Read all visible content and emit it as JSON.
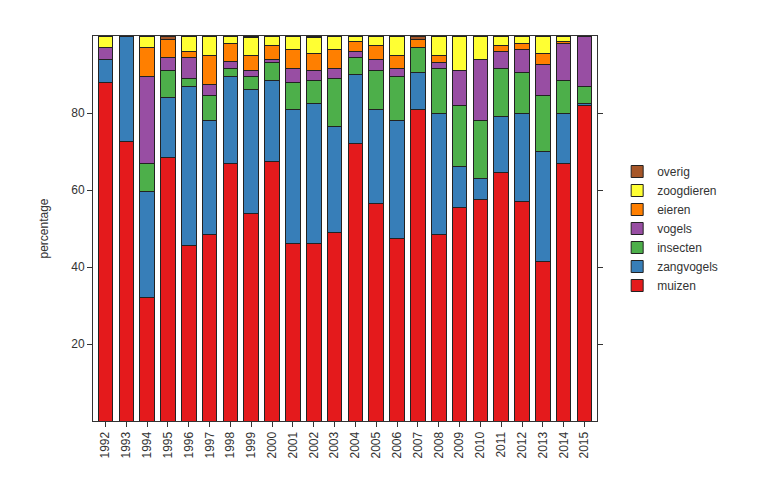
{
  "chart_data": {
    "type": "bar",
    "stacked": true,
    "grid": false,
    "legend": "right",
    "y_label": "percentage",
    "categories": [
      "1992",
      "1993",
      "1994",
      "1995",
      "1996",
      "1997",
      "1998",
      "1999",
      "2000",
      "2001",
      "2002",
      "2003",
      "2004",
      "2005",
      "2006",
      "2007",
      "2008",
      "2009",
      "2010",
      "2011",
      "2012",
      "2013",
      "2014",
      "2015"
    ],
    "ylim": [
      0,
      100
    ],
    "yticks": [
      20,
      40,
      60,
      80
    ],
    "series": [
      {
        "name": "muizen",
        "color": "#E41A1C",
        "values": [
          88,
          72.5,
          32,
          68.5,
          45.5,
          48.5,
          67,
          54,
          67.5,
          46,
          46,
          49,
          72,
          56.5,
          47.5,
          81,
          48.5,
          55.5,
          57.5,
          64.5,
          57,
          41.5,
          67,
          82
        ]
      },
      {
        "name": "zangvogels",
        "color": "#377EB8",
        "values": [
          6,
          27.5,
          27.5,
          15.5,
          41.5,
          29.5,
          22.5,
          32,
          21,
          35,
          36.5,
          27.5,
          18,
          24.5,
          30.5,
          9.5,
          31.5,
          10.5,
          5.5,
          14.5,
          23,
          28.5,
          13,
          0.5
        ]
      },
      {
        "name": "insecten",
        "color": "#4DAF4A",
        "values": [
          0,
          0,
          7.5,
          7,
          2,
          6.5,
          2,
          3.5,
          4.5,
          7,
          6,
          12.5,
          4.5,
          10,
          11.5,
          6.5,
          11.5,
          16,
          15,
          12.5,
          10.5,
          14.5,
          8.5,
          4.5
        ]
      },
      {
        "name": "vogels",
        "color": "#984EA3",
        "values": [
          3,
          0,
          22.5,
          3.5,
          5.5,
          3,
          2,
          1.5,
          1,
          3.5,
          2.5,
          2.5,
          1.5,
          3,
          2,
          0,
          1.5,
          9,
          16,
          4.5,
          6,
          8,
          9.5,
          13
        ]
      },
      {
        "name": "eieren",
        "color": "#FF7F00",
        "values": [
          0,
          0,
          7.5,
          4.5,
          1.5,
          7.5,
          4.5,
          4,
          3.5,
          5,
          4.5,
          5,
          2.5,
          3.5,
          3.5,
          2,
          2,
          0,
          0,
          1.5,
          1.5,
          3,
          0.5,
          0
        ]
      },
      {
        "name": "zoogdieren",
        "color": "#FFFF33",
        "values": [
          3,
          0,
          3,
          0,
          4,
          5,
          2,
          4.5,
          2.5,
          3.5,
          4,
          3.5,
          1.5,
          2.5,
          5,
          0,
          5,
          9,
          6,
          2.5,
          2,
          4.5,
          1.5,
          0
        ]
      },
      {
        "name": "overig",
        "color": "#A65628",
        "values": [
          0,
          0,
          0,
          1,
          0,
          0,
          0,
          0.5,
          0,
          0,
          0.5,
          0,
          0,
          0,
          0,
          1,
          0,
          0,
          0,
          0,
          0,
          0,
          0,
          0
        ]
      }
    ]
  }
}
